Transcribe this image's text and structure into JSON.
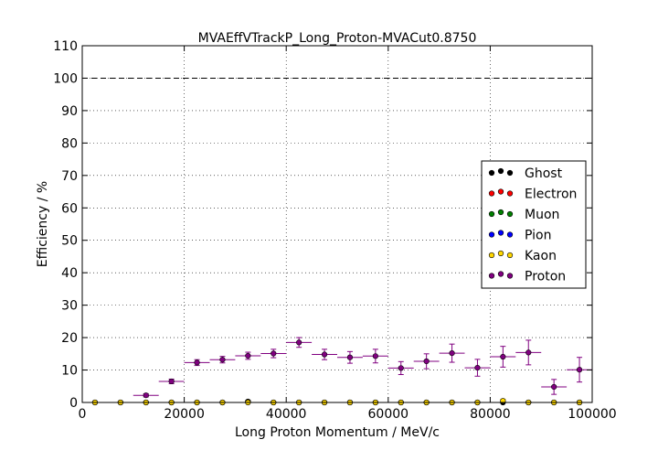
{
  "chart_data": {
    "type": "scatter",
    "title": "MVAEffVTrackP_Long_Proton-MVACut0.8750",
    "xlabel": "Long Proton Momentum / MeV/c",
    "ylabel": "Efficiency / %",
    "xlim": [
      0,
      100000
    ],
    "ylim": [
      0,
      110
    ],
    "xticks": [
      0,
      20000,
      40000,
      60000,
      80000,
      100000
    ],
    "yticks": [
      0,
      10,
      20,
      30,
      40,
      50,
      60,
      70,
      80,
      90,
      100,
      110
    ],
    "grid": true,
    "reference_line": 100,
    "legend_position": "right",
    "series": [
      {
        "name": "Ghost",
        "color": "#000000",
        "x": [
          2500,
          7500,
          12500,
          17500,
          22500,
          27500,
          32500,
          37500,
          42500,
          47500,
          52500,
          57500,
          62500,
          67500,
          72500,
          77500,
          82500,
          87500,
          92500,
          97500
        ],
        "y": [
          0,
          0,
          0,
          0,
          0,
          0,
          0.3,
          0,
          0,
          0,
          0,
          0,
          0,
          0,
          0,
          0,
          0,
          0,
          0,
          0
        ],
        "yerr": [
          0,
          0,
          0,
          0,
          0,
          0,
          0.3,
          0,
          0,
          0,
          0,
          0,
          0,
          0,
          0,
          0,
          0,
          0,
          0,
          0
        ]
      },
      {
        "name": "Electron",
        "color": "#ff0000",
        "x": [],
        "y": [],
        "yerr": []
      },
      {
        "name": "Muon",
        "color": "#008000",
        "x": [],
        "y": [],
        "yerr": []
      },
      {
        "name": "Pion",
        "color": "#0000ff",
        "x": [],
        "y": [],
        "yerr": []
      },
      {
        "name": "Kaon",
        "color": "#ffd700",
        "x": [
          2500,
          7500,
          12500,
          17500,
          22500,
          27500,
          32500,
          37500,
          42500,
          47500,
          52500,
          57500,
          62500,
          67500,
          72500,
          77500,
          82500,
          87500,
          92500,
          97500
        ],
        "y": [
          0,
          0,
          0,
          0,
          0,
          0,
          0,
          0,
          0,
          0,
          0,
          0,
          0,
          0,
          0,
          0,
          0.5,
          0,
          0,
          0
        ],
        "yerr": [
          0,
          0,
          0,
          0,
          0,
          0,
          0,
          0,
          0,
          0,
          0,
          0,
          0,
          0,
          0,
          0,
          0.5,
          0,
          0,
          0
        ]
      },
      {
        "name": "Proton",
        "color": "#800080",
        "x": [
          12500,
          17500,
          22500,
          27500,
          32500,
          37500,
          42500,
          47500,
          52500,
          57500,
          62500,
          67500,
          72500,
          77500,
          82500,
          87500,
          92500,
          97500
        ],
        "y": [
          2.2,
          6.5,
          12.3,
          13.2,
          14.4,
          15.1,
          18.5,
          14.8,
          13.9,
          14.3,
          10.6,
          12.7,
          15.2,
          10.7,
          14.1,
          15.4,
          4.8,
          10.1
        ],
        "yerr": [
          0.5,
          0.7,
          0.9,
          1.0,
          1.1,
          1.3,
          1.5,
          1.6,
          1.8,
          2.1,
          2.0,
          2.3,
          2.8,
          2.6,
          3.2,
          3.8,
          2.3,
          3.8
        ],
        "xerr": [
          2500,
          2500,
          2500,
          2500,
          2500,
          2500,
          2500,
          2500,
          2500,
          2500,
          2500,
          2500,
          2500,
          2500,
          2500,
          2500,
          2500,
          2500
        ]
      }
    ]
  }
}
